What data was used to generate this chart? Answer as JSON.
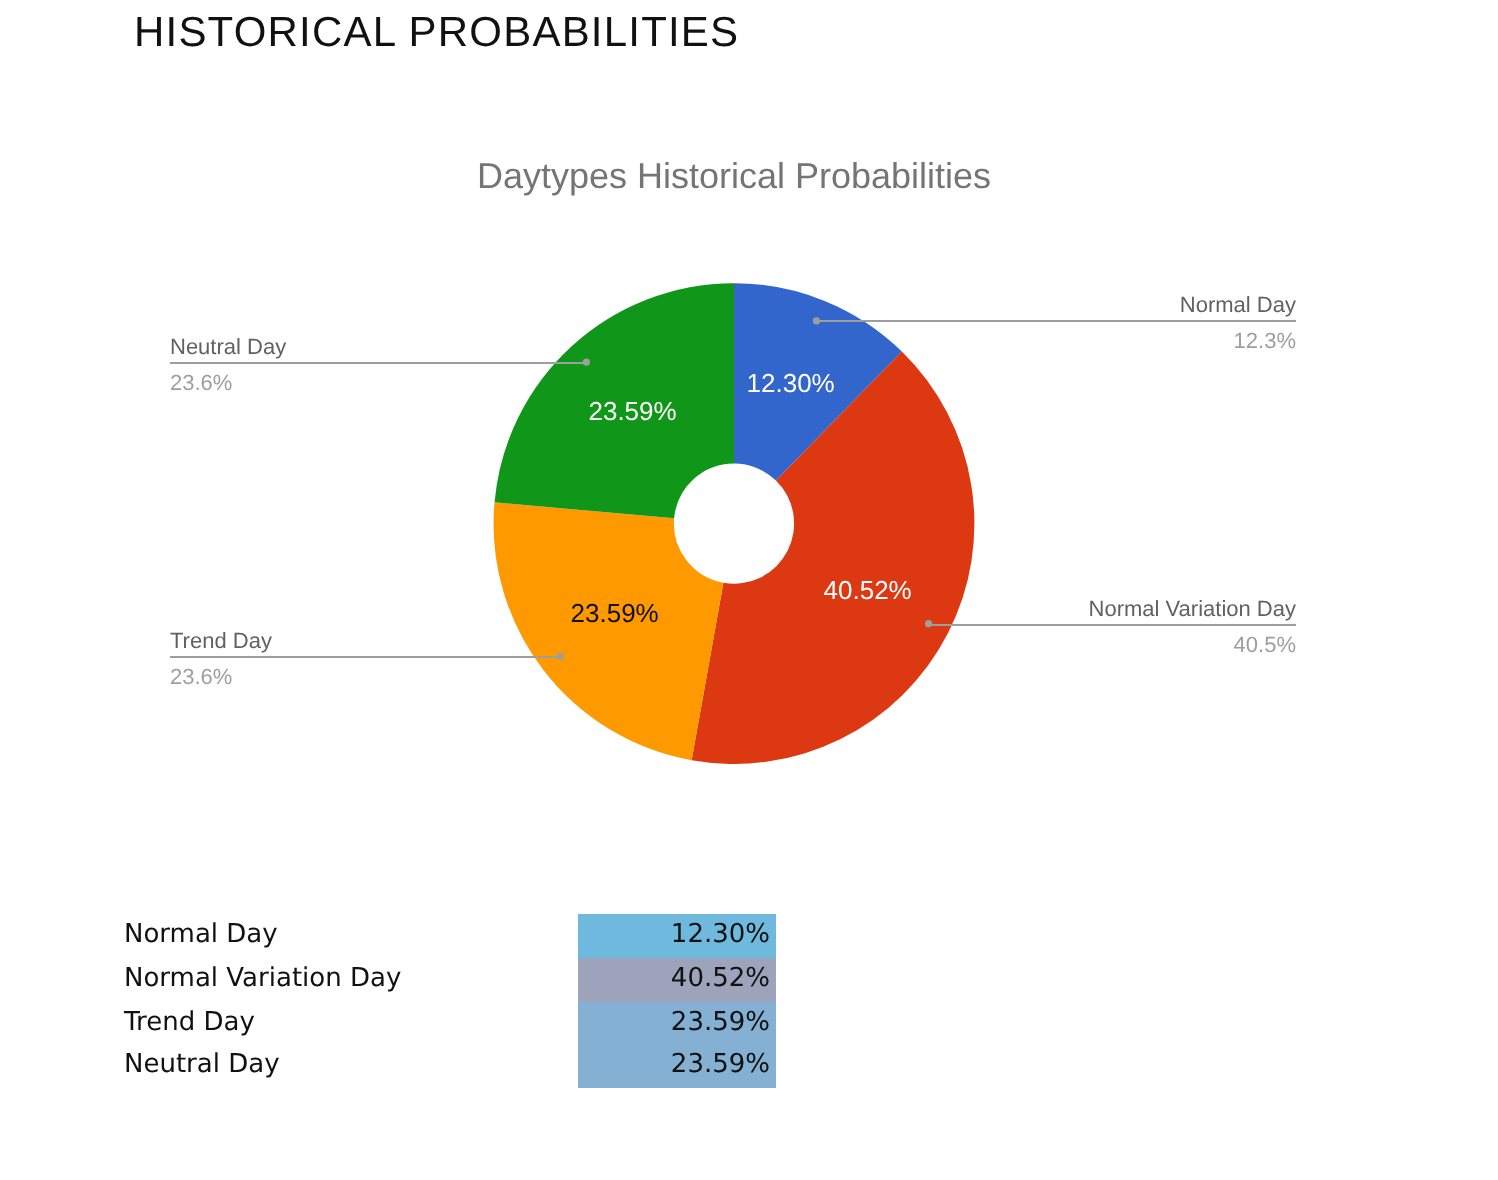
{
  "chart_data": {
    "type": "donut",
    "title": "HISTORICAL PROBABILITIES",
    "subtitle": "Daytypes Historical Probabilities",
    "categories": [
      "Normal Day",
      "Normal Variation Day",
      "Trend Day",
      "Neutral Day"
    ],
    "values": [
      12.3,
      40.52,
      23.59,
      23.59
    ],
    "colors": [
      "#3366cc",
      "#dc3912",
      "#ff9900",
      "#109618"
    ],
    "value_labels": [
      "12.30%",
      "40.52%",
      "23.59%",
      "23.59%"
    ],
    "annotations": [
      "12.3%",
      "40.5%",
      "23.6%",
      "23.6%"
    ]
  }
}
